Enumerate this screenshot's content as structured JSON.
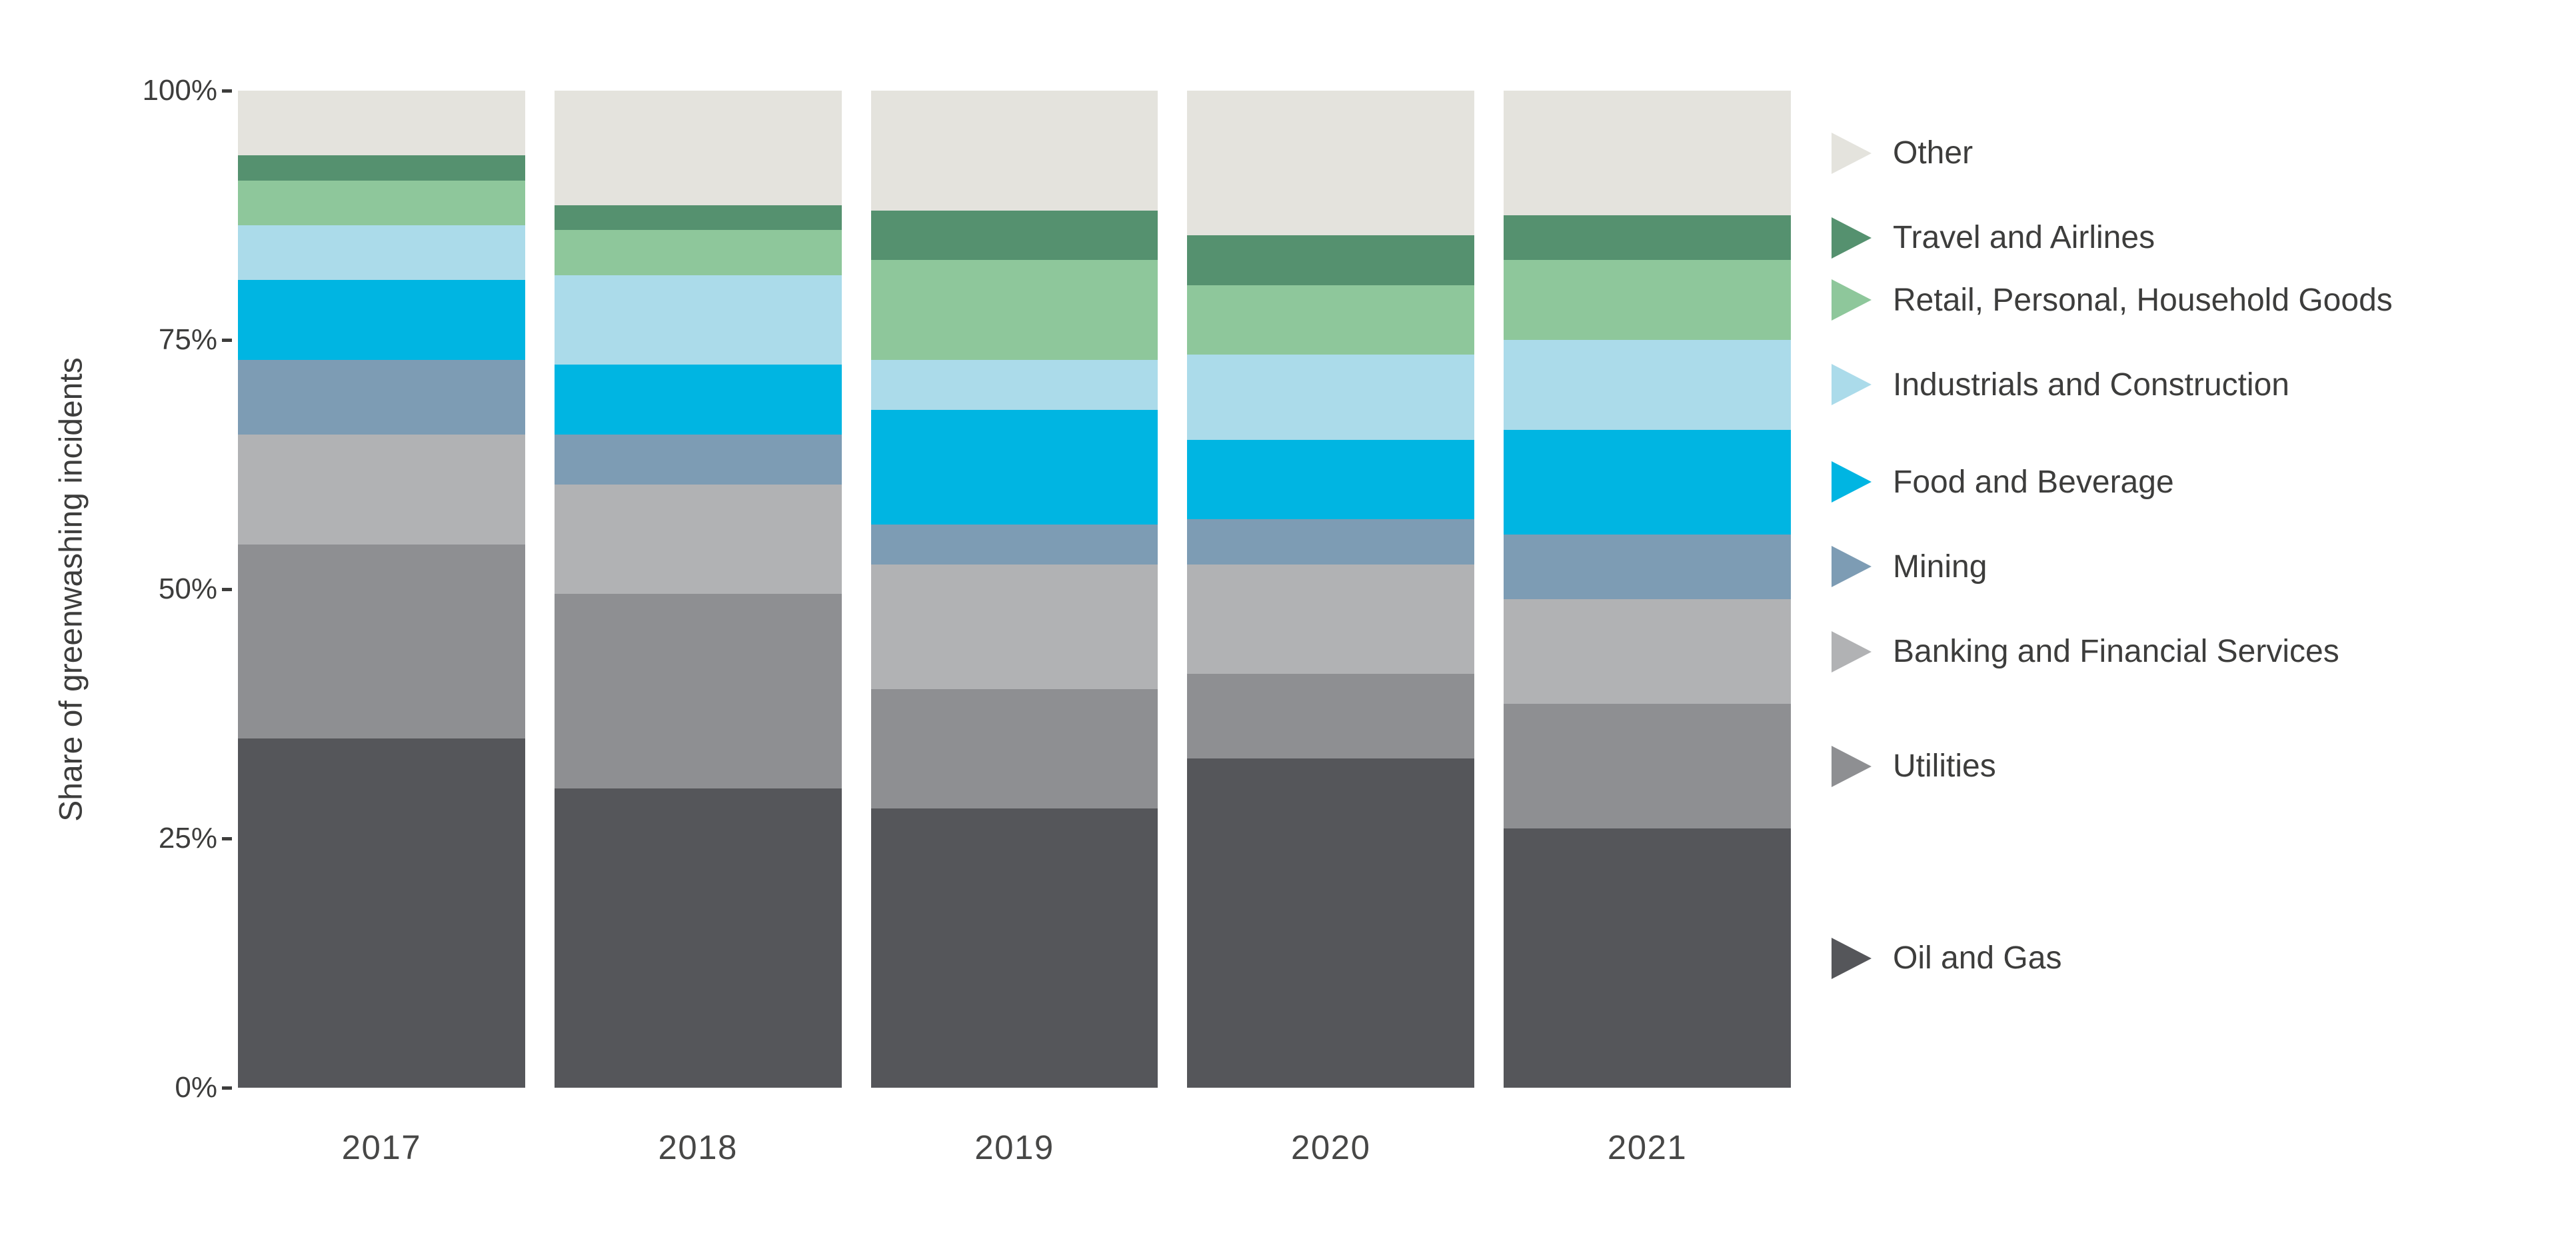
{
  "chart_data": {
    "type": "bar",
    "variant": "stacked-100-percent",
    "title": "",
    "xlabel": "",
    "ylabel": "Share of greenwashing incidents",
    "ylim": [
      0,
      100
    ],
    "grid": false,
    "legend_position": "right",
    "categories": [
      "2017",
      "2018",
      "2019",
      "2020",
      "2021"
    ],
    "yticks": [
      {
        "value": 0,
        "label": "0%"
      },
      {
        "value": 25,
        "label": "25%"
      },
      {
        "value": 50,
        "label": "50%"
      },
      {
        "value": 75,
        "label": "75%"
      },
      {
        "value": 100,
        "label": "100%"
      }
    ],
    "series": [
      {
        "name": "Oil and Gas",
        "color": "#55565a",
        "values": [
          35,
          30,
          28,
          33,
          26
        ]
      },
      {
        "name": "Utilities",
        "color": "#8e8f92",
        "values": [
          19.5,
          19.5,
          12,
          8.5,
          12.5
        ]
      },
      {
        "name": "Banking and Financial Services",
        "color": "#b1b2b4",
        "values": [
          11,
          11,
          12.5,
          11,
          10.5
        ]
      },
      {
        "name": "Mining",
        "color": "#7d9cb4",
        "values": [
          7.5,
          5,
          4,
          4.5,
          6.5
        ]
      },
      {
        "name": "Food and Beverage",
        "color": "#00b5e2",
        "values": [
          8,
          7,
          11.5,
          8,
          10.5
        ]
      },
      {
        "name": "Industrials and Construction",
        "color": "#abdbea",
        "values": [
          5.5,
          9,
          5,
          8.5,
          9
        ]
      },
      {
        "name": "Retail, Personal, Household Goods",
        "color": "#8ec79b",
        "values": [
          4.5,
          4.5,
          10,
          7,
          8
        ]
      },
      {
        "name": "Travel and Airlines",
        "color": "#55916f",
        "values": [
          2.5,
          2.5,
          5,
          5,
          4.5
        ]
      },
      {
        "name": "Other",
        "color": "#e4e3dd",
        "values": [
          6.5,
          11.5,
          12,
          14.5,
          12.5
        ]
      }
    ]
  }
}
